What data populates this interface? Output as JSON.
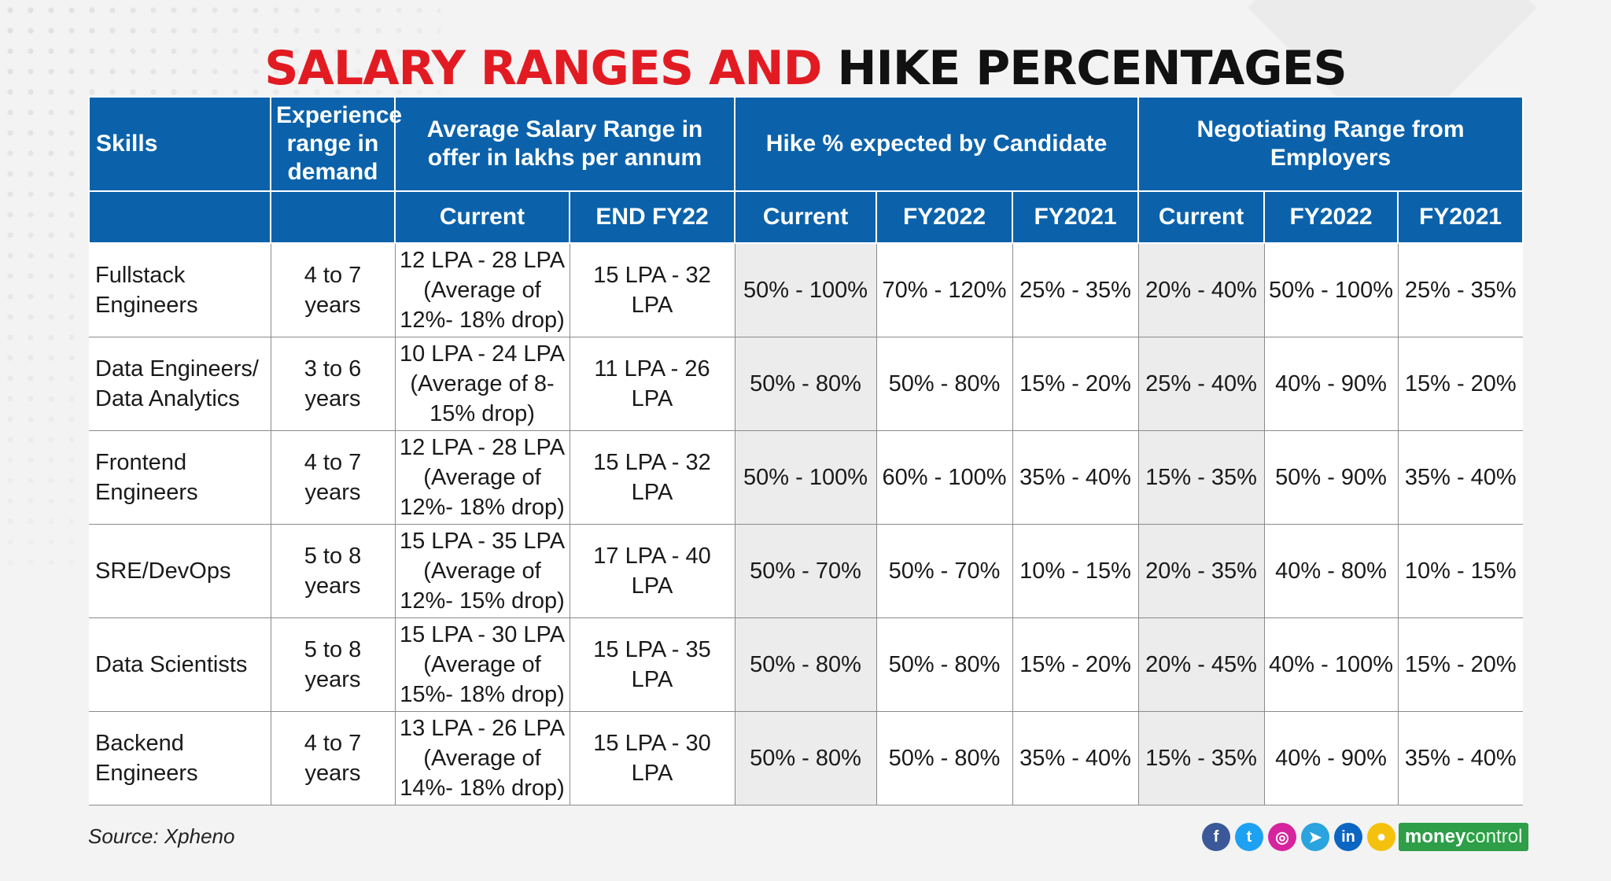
{
  "title": {
    "red_part": "SALARY RANGES AND",
    "black_part": "HIKE PERCENTAGES"
  },
  "header": {
    "skills": "Skills",
    "experience": "Experience range in demand",
    "avg_salary": "Average Salary Range in offer in lakhs per annum",
    "hike_expected": "Hike % expected by Candidate",
    "negotiating": "Negotiating Range from Employers",
    "sub": [
      "Current",
      "END FY22",
      "Current",
      "FY2022",
      "FY2021",
      "Current",
      "FY2022",
      "FY2021"
    ]
  },
  "chart_data": {
    "type": "table",
    "title": "SALARY RANGES AND HIKE PERCENTAGES",
    "columns": [
      "Skills",
      "Experience range in demand",
      "Average Salary Range in offer in lakhs per annum - Current",
      "Average Salary Range in offer in lakhs per annum - END FY22",
      "Hike % expected by Candidate - Current",
      "Hike % expected by Candidate - FY2022",
      "Hike % expected by Candidate - FY2021",
      "Negotiating Range from Employers - Current",
      "Negotiating Range from Employers - FY2022",
      "Negotiating Range from Employers - FY2021"
    ],
    "rows": [
      [
        "Fullstack Engineers",
        "4 to 7 years",
        "12 LPA - 28 LPA (Average of 12%- 18% drop)",
        "15 LPA - 32 LPA",
        "50% - 100%",
        "70% - 120%",
        "25% - 35%",
        "20% - 40%",
        "50% - 100%",
        "25% - 35%"
      ],
      [
        "Data Engineers/ Data Analytics",
        "3 to 6 years",
        "10 LPA - 24 LPA (Average of 8-15% drop)",
        "11 LPA - 26 LPA",
        "50% - 80%",
        "50% - 80%",
        "15% - 20%",
        "25% - 40%",
        "40% - 90%",
        "15% - 20%"
      ],
      [
        "Frontend Engineers",
        "4 to 7 years",
        "12 LPA - 28 LPA (Average of 12%- 18% drop)",
        "15 LPA - 32 LPA",
        "50% - 100%",
        "60% - 100%",
        "35% - 40%",
        "15% - 35%",
        "50% - 90%",
        "35% - 40%"
      ],
      [
        "SRE/DevOps",
        "5 to 8 years",
        "15 LPA - 35 LPA (Average of 12%- 15% drop)",
        "17 LPA - 40 LPA",
        "50% - 70%",
        "50% - 70%",
        "10% - 15%",
        "20% - 35%",
        "40% - 80%",
        "10% - 15%"
      ],
      [
        "Data Scientists",
        "5 to 8 years",
        "15 LPA - 30 LPA (Average of 15%- 18% drop)",
        "15 LPA - 35 LPA",
        "50% - 80%",
        "50% - 80%",
        "15% - 20%",
        "20% - 45%",
        "40% - 100%",
        "15% - 20%"
      ],
      [
        "Backend Engineers",
        "4 to 7 years",
        "13 LPA - 26 LPA (Average of 14%- 18% drop)",
        "15 LPA - 30 LPA",
        "50% - 80%",
        "50% - 80%",
        "35% - 40%",
        "15% - 35%",
        "40% - 90%",
        "35% - 40%"
      ]
    ]
  },
  "source": "Source: Xpheno",
  "social_icons": [
    {
      "name": "facebook-icon",
      "glyph": "f",
      "color": "#3b5998"
    },
    {
      "name": "twitter-icon",
      "glyph": "t",
      "color": "#1da1f2"
    },
    {
      "name": "instagram-icon",
      "glyph": "◎",
      "color": "#d6249f"
    },
    {
      "name": "telegram-icon",
      "glyph": "➤",
      "color": "#2aa3df"
    },
    {
      "name": "linkedin-icon",
      "glyph": "in",
      "color": "#0a66c2"
    },
    {
      "name": "koo-icon",
      "glyph": "●",
      "color": "#f4c20d"
    }
  ],
  "brand": {
    "money": "money",
    "control": "control"
  },
  "colors": {
    "header_blue": "#0b62ab",
    "title_red": "#e21b23",
    "shade_grey": "#ececec",
    "brand_green": "#2e9e48"
  }
}
